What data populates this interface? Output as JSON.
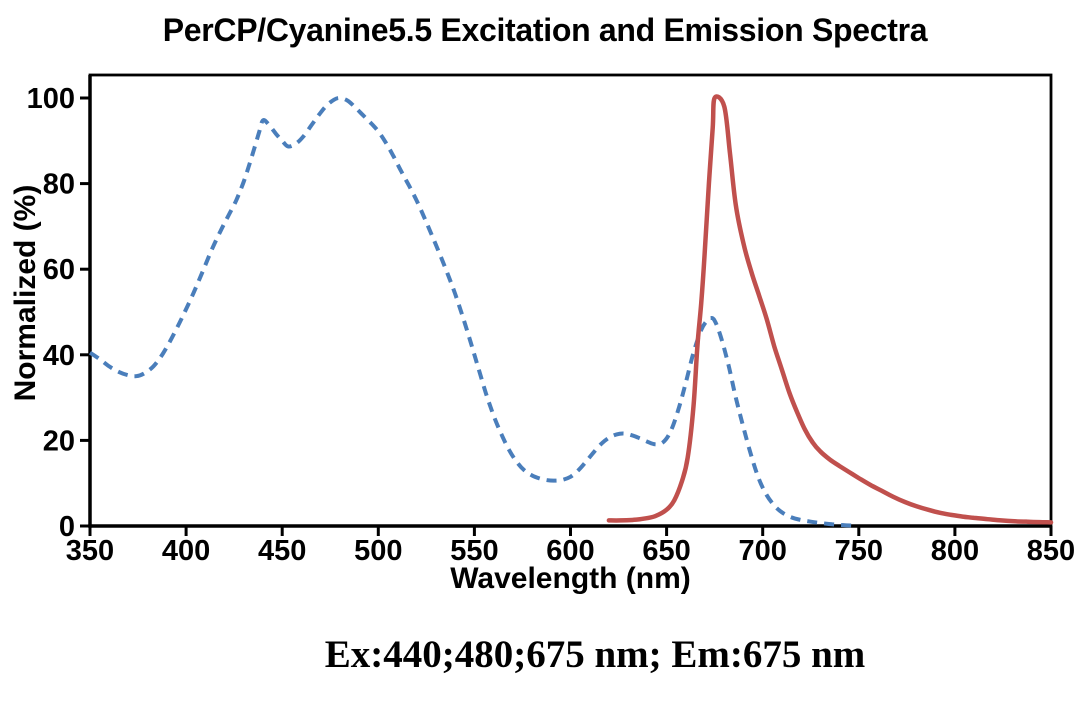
{
  "title": "PerCP/Cyanine5.5 Excitation and Emission Spectra",
  "caption": "Ex:440;480;675 nm; Em:675 nm",
  "colors": {
    "excitation_blue": "#4a7ebb",
    "emission_red": "#c0504d",
    "axis_black": "#000000",
    "background": "#ffffff"
  },
  "chart_data": {
    "type": "line",
    "title": "PerCP/Cyanine5.5 Excitation and Emission Spectra",
    "xlabel": "Wavelength (nm)",
    "ylabel": "Normalized (%)",
    "xlim": [
      350,
      850
    ],
    "ylim": [
      0,
      100
    ],
    "x_ticks": [
      350,
      400,
      450,
      500,
      550,
      600,
      650,
      700,
      750,
      800,
      850
    ],
    "y_ticks": [
      0,
      20,
      40,
      60,
      80,
      100
    ],
    "grid": false,
    "legend": "none",
    "annotation": "Ex:440;480;675 nm; Em:675 nm",
    "series": [
      {
        "name": "Excitation",
        "line_style": "dashed",
        "color": "#4a7ebb",
        "stroke_width": 4,
        "points": [
          [
            350,
            40.5
          ],
          [
            355,
            39
          ],
          [
            360,
            37.3
          ],
          [
            365,
            36
          ],
          [
            370,
            35.2
          ],
          [
            374,
            35
          ],
          [
            378,
            35.6
          ],
          [
            383,
            37.3
          ],
          [
            388,
            40.3
          ],
          [
            393,
            44.3
          ],
          [
            398,
            48.8
          ],
          [
            403,
            53.6
          ],
          [
            408,
            58.8
          ],
          [
            413,
            64.2
          ],
          [
            418,
            69
          ],
          [
            422,
            72.5
          ],
          [
            426,
            76
          ],
          [
            430,
            80.5
          ],
          [
            434,
            86
          ],
          [
            438,
            92
          ],
          [
            440,
            94.8
          ],
          [
            443,
            93.8
          ],
          [
            447,
            91.5
          ],
          [
            450,
            90
          ],
          [
            453,
            88.7
          ],
          [
            457,
            89.3
          ],
          [
            461,
            91
          ],
          [
            465,
            93.5
          ],
          [
            469,
            96
          ],
          [
            473,
            98.2
          ],
          [
            477,
            99.6
          ],
          [
            480,
            100
          ],
          [
            484,
            99.4
          ],
          [
            488,
            97.8
          ],
          [
            492,
            96
          ],
          [
            496,
            94.2
          ],
          [
            500,
            92.2
          ],
          [
            504,
            89.5
          ],
          [
            508,
            86.3
          ],
          [
            512,
            82.8
          ],
          [
            516,
            79.5
          ],
          [
            520,
            76
          ],
          [
            524,
            72
          ],
          [
            528,
            67.8
          ],
          [
            532,
            63.5
          ],
          [
            536,
            59
          ],
          [
            540,
            54.2
          ],
          [
            544,
            48.8
          ],
          [
            548,
            43
          ],
          [
            552,
            37
          ],
          [
            556,
            31
          ],
          [
            560,
            25.8
          ],
          [
            564,
            21.5
          ],
          [
            568,
            17.8
          ],
          [
            572,
            15
          ],
          [
            576,
            13
          ],
          [
            580,
            11.8
          ],
          [
            584,
            11.1
          ],
          [
            588,
            10.7
          ],
          [
            592,
            10.6
          ],
          [
            596,
            10.8
          ],
          [
            600,
            11.5
          ],
          [
            604,
            13
          ],
          [
            608,
            15
          ],
          [
            612,
            17.2
          ],
          [
            616,
            19.2
          ],
          [
            620,
            20.6
          ],
          [
            624,
            21.4
          ],
          [
            628,
            21.6
          ],
          [
            632,
            21.2
          ],
          [
            636,
            20.5
          ],
          [
            640,
            19.7
          ],
          [
            644,
            19.1
          ],
          [
            648,
            19.5
          ],
          [
            652,
            22
          ],
          [
            656,
            27
          ],
          [
            660,
            33.5
          ],
          [
            664,
            40.5
          ],
          [
            668,
            45.8
          ],
          [
            671,
            48
          ],
          [
            673,
            48.6
          ],
          [
            675,
            48
          ],
          [
            678,
            44.5
          ],
          [
            682,
            38
          ],
          [
            686,
            30
          ],
          [
            690,
            23
          ],
          [
            694,
            16.5
          ],
          [
            698,
            11
          ],
          [
            702,
            7.3
          ],
          [
            706,
            4.8
          ],
          [
            710,
            3.2
          ],
          [
            715,
            2
          ],
          [
            720,
            1.4
          ],
          [
            725,
            1
          ],
          [
            730,
            0.7
          ],
          [
            736,
            0.4
          ],
          [
            742,
            0.2
          ],
          [
            748,
            0.1
          ]
        ]
      },
      {
        "name": "Emission",
        "line_style": "solid",
        "color": "#c0504d",
        "stroke_width": 4.5,
        "points": [
          [
            620,
            1.3
          ],
          [
            626,
            1.3
          ],
          [
            632,
            1.4
          ],
          [
            638,
            1.7
          ],
          [
            644,
            2.3
          ],
          [
            650,
            3.8
          ],
          [
            654,
            6
          ],
          [
            658,
            10.5
          ],
          [
            661,
            16
          ],
          [
            664,
            28
          ],
          [
            666,
            42
          ],
          [
            668,
            52
          ],
          [
            670,
            65
          ],
          [
            672,
            80
          ],
          [
            674,
            93
          ],
          [
            675,
            100
          ],
          [
            680,
            98
          ],
          [
            683,
            87
          ],
          [
            686,
            75
          ],
          [
            690,
            66
          ],
          [
            694,
            59.5
          ],
          [
            698,
            54
          ],
          [
            702,
            48.5
          ],
          [
            706,
            42
          ],
          [
            710,
            36.5
          ],
          [
            714,
            31
          ],
          [
            718,
            26.5
          ],
          [
            722,
            22.5
          ],
          [
            726,
            19.5
          ],
          [
            730,
            17.4
          ],
          [
            735,
            15.5
          ],
          [
            740,
            14
          ],
          [
            745,
            12.6
          ],
          [
            750,
            11.2
          ],
          [
            756,
            9.6
          ],
          [
            762,
            8.2
          ],
          [
            768,
            6.8
          ],
          [
            774,
            5.6
          ],
          [
            780,
            4.6
          ],
          [
            786,
            3.8
          ],
          [
            792,
            3.1
          ],
          [
            798,
            2.6
          ],
          [
            804,
            2.2
          ],
          [
            810,
            1.9
          ],
          [
            817,
            1.6
          ],
          [
            824,
            1.3
          ],
          [
            831,
            1.1
          ],
          [
            838,
            1
          ],
          [
            844,
            0.9
          ],
          [
            850,
            0.85
          ]
        ]
      }
    ]
  }
}
